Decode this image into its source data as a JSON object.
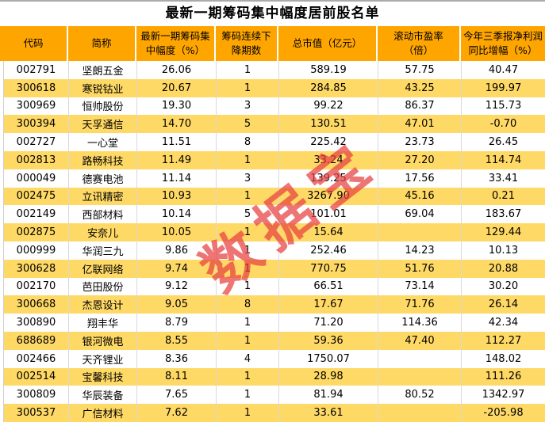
{
  "title": "最新一期筹码集中幅度居前股名单",
  "watermark": "数据宝",
  "colors": {
    "header_bg": "#FFA500",
    "alt_row_bg": "#FFD966",
    "watermark_red": "#E84040",
    "top_rule": "#ABABAB",
    "grid_line": "#D9D9D9",
    "text": "#000000"
  },
  "table": {
    "columns": [
      "代码",
      "简称",
      "最新一期筹码集\n中幅度（%）",
      "筹码连续下\n降期数",
      "总市值（亿元）",
      "滚动市盈率\n（倍）",
      "今年三季报净利润\n同比增幅（%）"
    ],
    "rows": [
      [
        "002791",
        "坚朗五金",
        "26.06",
        "1",
        "589.19",
        "57.75",
        "40.47"
      ],
      [
        "300618",
        "寒锐钴业",
        "20.67",
        "1",
        "284.85",
        "43.25",
        "199.97"
      ],
      [
        "300969",
        "恒帅股份",
        "19.30",
        "3",
        "99.22",
        "86.37",
        "115.73"
      ],
      [
        "300394",
        "天孚通信",
        "14.70",
        "5",
        "130.51",
        "47.01",
        "-0.70"
      ],
      [
        "002727",
        "一心堂",
        "11.51",
        "8",
        "225.42",
        "23.73",
        "26.45"
      ],
      [
        "002813",
        "路畅科技",
        "11.49",
        "1",
        "33.24",
        "27.20",
        "114.74"
      ],
      [
        "000049",
        "德赛电池",
        "11.14",
        "3",
        "139.25",
        "17.56",
        "33.41"
      ],
      [
        "002475",
        "立讯精密",
        "10.93",
        "1",
        "3267.90",
        "45.16",
        "0.21"
      ],
      [
        "002149",
        "西部材料",
        "10.14",
        "5",
        "101.01",
        "69.04",
        "183.67"
      ],
      [
        "002875",
        "安奈儿",
        "10.05",
        "1",
        "15.64",
        "",
        "129.44"
      ],
      [
        "000999",
        "华润三九",
        "9.86",
        "1",
        "252.46",
        "14.23",
        "10.13"
      ],
      [
        "300628",
        "亿联网络",
        "9.74",
        "1",
        "770.75",
        "51.76",
        "20.88"
      ],
      [
        "002170",
        "芭田股份",
        "9.12",
        "1",
        "66.51",
        "73.14",
        "30.20"
      ],
      [
        "300668",
        "杰恩设计",
        "9.05",
        "8",
        "17.67",
        "71.76",
        "26.14"
      ],
      [
        "300890",
        "翔丰华",
        "8.79",
        "1",
        "71.20",
        "114.36",
        "42.34"
      ],
      [
        "688689",
        "银河微电",
        "8.55",
        "1",
        "59.36",
        "47.40",
        "112.27"
      ],
      [
        "002466",
        "天齐锂业",
        "8.36",
        "4",
        "1750.07",
        "",
        "148.02"
      ],
      [
        "002514",
        "宝馨科技",
        "8.11",
        "1",
        "28.98",
        "",
        "111.26"
      ],
      [
        "300809",
        "华辰装备",
        "7.65",
        "1",
        "81.94",
        "80.52",
        "1342.97"
      ],
      [
        "300537",
        "广信材料",
        "7.62",
        "1",
        "33.61",
        "",
        "-205.98"
      ]
    ]
  }
}
